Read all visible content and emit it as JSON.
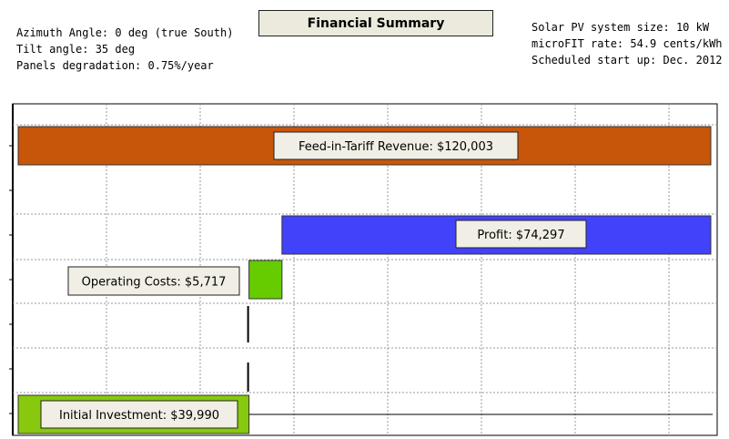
{
  "header": {
    "title": "Financial Summary",
    "left_info": [
      "Azimuth Angle: 0 deg (true South)",
      "Tilt angle: 35 deg",
      "Panels degradation: 0.75%/year"
    ],
    "right_info": [
      "Solar PV system size: 10 kW",
      "microFIT rate: 54.9 cents/kWh",
      "Scheduled start up: Dec. 2012"
    ]
  },
  "chart_data": {
    "type": "bar",
    "orientation": "horizontal-waterfall",
    "title": "Financial Summary",
    "xlim": [
      0,
      120003
    ],
    "bars": [
      {
        "label": "Feed-in-Tariff Revenue",
        "value": 120003,
        "value_text": "$120,003",
        "start": 0,
        "end": 120003,
        "color": "#c8560a"
      },
      {
        "label": "Profit",
        "value": 74297,
        "value_text": "$74,297",
        "start": 45706,
        "end": 120003,
        "color": "#4242fb"
      },
      {
        "label": "Operating Costs",
        "value": 5717,
        "value_text": "$5,717",
        "start": 39990,
        "end": 45706,
        "color": "#66cc00"
      },
      {
        "label": "Initial Investment",
        "value": 39990,
        "value_text": "$39,990",
        "start": 0,
        "end": 39990,
        "color": "#88c80e"
      }
    ],
    "grid": true
  }
}
